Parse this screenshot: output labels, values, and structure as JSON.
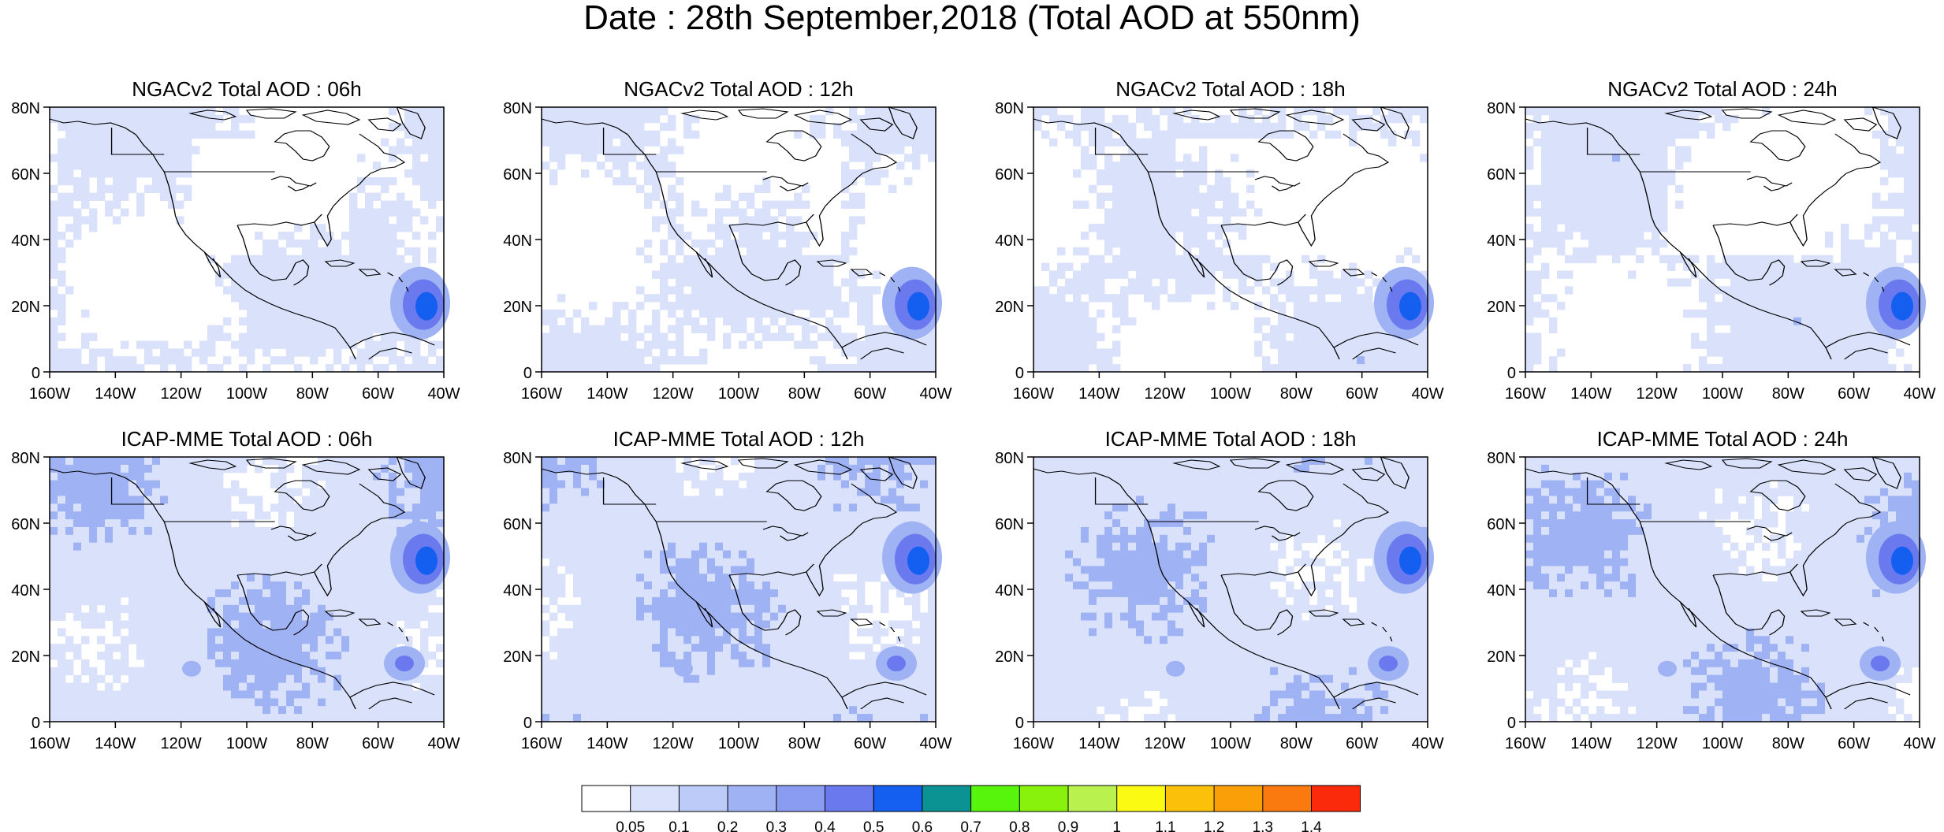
{
  "figure": {
    "title": "Date : 28th September,2018 (Total AOD at 550nm)"
  },
  "axes": {
    "lat_ticks": [
      "80N",
      "60N",
      "40N",
      "20N",
      "0"
    ],
    "lon_ticks": [
      "160W",
      "140W",
      "120W",
      "100W",
      "80W",
      "60W",
      "40W"
    ],
    "lon_range": [
      -160,
      -40
    ],
    "lat_range": [
      0,
      80
    ]
  },
  "panels": [
    {
      "model": "NGACv2",
      "title": "NGACv2 Total AOD : 06h"
    },
    {
      "model": "NGACv2",
      "title": "NGACv2 Total AOD : 12h"
    },
    {
      "model": "NGACv2",
      "title": "NGACv2 Total AOD : 18h"
    },
    {
      "model": "NGACv2",
      "title": "NGACv2 Total AOD : 24h"
    },
    {
      "model": "ICAP-MME",
      "title": "ICAP-MME Total AOD : 06h"
    },
    {
      "model": "ICAP-MME",
      "title": "ICAP-MME Total AOD : 12h"
    },
    {
      "model": "ICAP-MME",
      "title": "ICAP-MME Total AOD : 18h"
    },
    {
      "model": "ICAP-MME",
      "title": "ICAP-MME Total AOD : 24h"
    }
  ],
  "colorbar": {
    "labels": [
      "0.05",
      "0.1",
      "0.2",
      "0.3",
      "0.4",
      "0.5",
      "0.6",
      "0.7",
      "0.8",
      "0.9",
      "1",
      "1.1",
      "1.2",
      "1.3",
      "1.4"
    ],
    "colors": [
      "#ffffff",
      "#d9e1fb",
      "#bccbf7",
      "#9fb2f4",
      "#8a9cf2",
      "#6a79ee",
      "#155ff0",
      "#0b9393",
      "#57f50c",
      "#88f20c",
      "#b9f24f",
      "#fbfa12",
      "#fbc00a",
      "#fb9f08",
      "#fb7a10",
      "#fb2a0a"
    ]
  },
  "map_colors": {
    "land_outline": "#000000",
    "ocean_background": "#ffffff",
    "aod_low": "#d9e1fb",
    "aod_mid": "#9fb2f4",
    "aod_high": "#6a79ee",
    "aod_peak": "#155ff0"
  }
}
